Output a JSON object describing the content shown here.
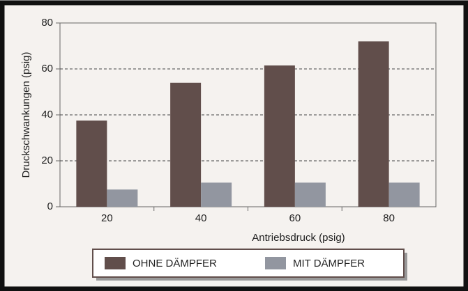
{
  "chart_data": {
    "type": "bar",
    "x_label": "Antriebsdruck (psig)",
    "y_label": "Druckschwankungen (psig)",
    "categories": [
      "20",
      "40",
      "60",
      "80"
    ],
    "series": [
      {
        "name": "OHNE DÄMPFER",
        "color": "#614e4b",
        "values": [
          37.5,
          54,
          61.5,
          72
        ]
      },
      {
        "name": "MIT DÄMPFER",
        "color": "#9296a0",
        "values": [
          7.5,
          10.5,
          10.5,
          10.5
        ]
      }
    ],
    "ylim": [
      0,
      80
    ],
    "yticks": [
      0,
      20,
      40,
      60,
      80
    ],
    "grid": true
  }
}
